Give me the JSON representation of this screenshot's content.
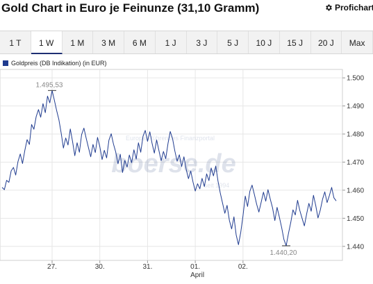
{
  "header": {
    "title": "Gold Chart in Euro je Feinunze (31,10 Gramm)",
    "profichart_label": "Profichart"
  },
  "tabs": [
    {
      "label": "1 T",
      "active": false
    },
    {
      "label": "1 W",
      "active": true
    },
    {
      "label": "1 M",
      "active": false
    },
    {
      "label": "3 M",
      "active": false
    },
    {
      "label": "6 M",
      "active": false
    },
    {
      "label": "1 J",
      "active": false
    },
    {
      "label": "3 J",
      "active": false
    },
    {
      "label": "5 J",
      "active": false
    },
    {
      "label": "10 J",
      "active": false
    },
    {
      "label": "15 J",
      "active": false
    },
    {
      "label": "20 J",
      "active": false
    },
    {
      "label": "Max",
      "active": false
    }
  ],
  "colors": {
    "line": "#1f3b8f",
    "active_tab_underline": "#1e2f73",
    "grid": "#e6e6e6"
  },
  "chart_data": {
    "type": "line",
    "series": [
      {
        "name": "Goldpreis (DB Indikation) (in EUR)",
        "values": [
          1461.0,
          1460.2,
          1463.5,
          1462.8,
          1466.9,
          1468.1,
          1465.4,
          1470.2,
          1472.9,
          1469.5,
          1474.1,
          1478.0,
          1476.3,
          1483.4,
          1481.7,
          1486.2,
          1488.7,
          1486.0,
          1490.8,
          1487.6,
          1493.5,
          1491.1,
          1495.5,
          1492.0,
          1488.4,
          1485.1,
          1480.3,
          1475.0,
          1478.6,
          1476.1,
          1481.8,
          1477.4,
          1472.3,
          1476.9,
          1473.5,
          1479.8,
          1482.1,
          1478.5,
          1475.2,
          1471.9,
          1476.3,
          1473.4,
          1478.8,
          1475.5,
          1470.9,
          1474.2,
          1471.5,
          1477.8,
          1480.1,
          1476.5,
          1473.6,
          1469.4,
          1472.8,
          1466.3,
          1470.6,
          1468.2,
          1472.5,
          1469.8,
          1474.4,
          1471.1,
          1476.9,
          1473.5,
          1479.2,
          1481.3,
          1477.4,
          1480.8,
          1476.6,
          1473.2,
          1477.9,
          1474.1,
          1470.5,
          1473.8,
          1471.2,
          1476.7,
          1480.9,
          1478.4,
          1474.0,
          1470.3,
          1472.6,
          1468.4,
          1471.9,
          1467.5,
          1464.1,
          1466.8,
          1462.9,
          1459.7,
          1462.3,
          1460.5,
          1464.2,
          1461.3,
          1465.8,
          1463.4,
          1467.9,
          1465.1,
          1468.6,
          1463.2,
          1459.0,
          1455.4,
          1451.8,
          1454.6,
          1449.3,
          1446.2,
          1450.5,
          1444.1,
          1440.6,
          1445.0,
          1450.8,
          1457.9,
          1454.2,
          1459.6,
          1461.8,
          1458.5,
          1455.0,
          1452.2,
          1455.7,
          1459.3,
          1456.1,
          1460.2,
          1456.8,
          1453.7,
          1449.2,
          1453.9,
          1450.4,
          1446.7,
          1442.5,
          1440.2,
          1444.6,
          1448.5,
          1453.0,
          1451.2,
          1456.4,
          1452.8,
          1450.0,
          1447.3,
          1451.6,
          1455.3,
          1452.5,
          1458.2,
          1454.5,
          1450.1,
          1452.9,
          1456.8,
          1459.4,
          1455.6,
          1458.1,
          1461.0,
          1457.3,
          1456.2
        ],
        "annotations": [
          {
            "label": "1.495,53",
            "value": 1495.53
          },
          {
            "label": "1.440,20",
            "value": 1440.2
          }
        ]
      }
    ],
    "ylim": [
      1435,
      1503
    ],
    "yticks": [
      {
        "label": "1.440",
        "value": 1440
      },
      {
        "label": "1.450",
        "value": 1450
      },
      {
        "label": "1.460",
        "value": 1460
      },
      {
        "label": "1.470",
        "value": 1470
      },
      {
        "label": "1.480",
        "value": 1480
      },
      {
        "label": "1.490",
        "value": 1490
      },
      {
        "label": "1.500",
        "value": 1500
      }
    ],
    "xticks": [
      {
        "label": "27.",
        "index": 22
      },
      {
        "label": "30.",
        "index": 43
      },
      {
        "label": "31.",
        "index": 64
      },
      {
        "label": "01.",
        "index": 85
      },
      {
        "label": "02.",
        "index": 106
      }
    ],
    "x_sublabel": "April",
    "watermark": {
      "line1": "Europas führendes Finanzportal",
      "brand": "boerse.de",
      "line3": "seit 1994"
    },
    "grid": true,
    "legend_position": "top-left"
  }
}
